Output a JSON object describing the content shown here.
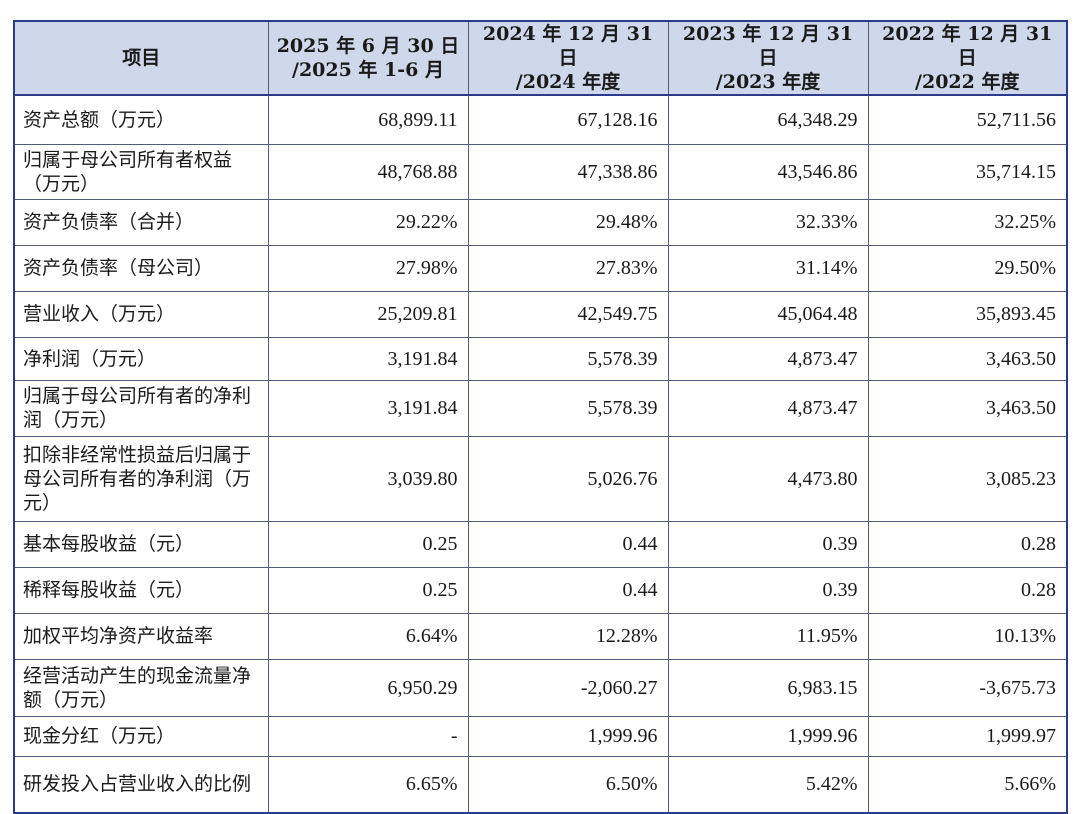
{
  "table": {
    "headers": [
      "项目",
      "2025 年 6 月 30 日\n/2025 年 1-6 月",
      "2024 年 12 月 31 日\n/2024 年度",
      "2023 年 12 月 31 日\n/2023 年度",
      "2022 年 12 月 31 日\n/2022 年度"
    ],
    "rows": [
      {
        "label": "资产总额（万元）",
        "values": [
          "68,899.11",
          "67,128.16",
          "64,348.29",
          "52,711.56"
        ]
      },
      {
        "label": "归属于母公司所有者权益（万元）",
        "values": [
          "48,768.88",
          "47,338.86",
          "43,546.86",
          "35,714.15"
        ]
      },
      {
        "label": "资产负债率（合并）",
        "values": [
          "29.22%",
          "29.48%",
          "32.33%",
          "32.25%"
        ]
      },
      {
        "label": "资产负债率（母公司）",
        "values": [
          "27.98%",
          "27.83%",
          "31.14%",
          "29.50%"
        ]
      },
      {
        "label": "营业收入（万元）",
        "values": [
          "25,209.81",
          "42,549.75",
          "45,064.48",
          "35,893.45"
        ]
      },
      {
        "label": "净利润（万元）",
        "values": [
          "3,191.84",
          "5,578.39",
          "4,873.47",
          "3,463.50"
        ]
      },
      {
        "label": "归属于母公司所有者的净利润（万元）",
        "values": [
          "3,191.84",
          "5,578.39",
          "4,873.47",
          "3,463.50"
        ]
      },
      {
        "label": "扣除非经常性损益后归属于母公司所有者的净利润（万元）",
        "values": [
          "3,039.80",
          "5,026.76",
          "4,473.80",
          "3,085.23"
        ]
      },
      {
        "label": "基本每股收益（元）",
        "values": [
          "0.25",
          "0.44",
          "0.39",
          "0.28"
        ]
      },
      {
        "label": "稀释每股收益（元）",
        "values": [
          "0.25",
          "0.44",
          "0.39",
          "0.28"
        ]
      },
      {
        "label": "加权平均净资产收益率",
        "values": [
          "6.64%",
          "12.28%",
          "11.95%",
          "10.13%"
        ]
      },
      {
        "label": "经营活动产生的现金流量净额（万元）",
        "values": [
          "6,950.29",
          "-2,060.27",
          "6,983.15",
          "-3,675.73"
        ]
      },
      {
        "label": "现金分红（万元）",
        "values": [
          "-",
          "1,999.96",
          "1,999.96",
          "1,999.97"
        ]
      },
      {
        "label": "研发投入占营业收入的比例",
        "values": [
          "6.65%",
          "6.50%",
          "5.42%",
          "5.66%"
        ]
      }
    ]
  },
  "colors": {
    "header_bg": "#cfd8ea",
    "border": "#2b3a8a"
  }
}
